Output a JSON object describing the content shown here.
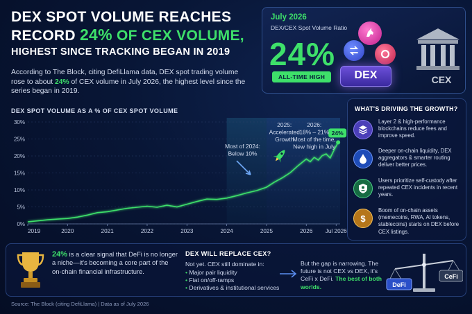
{
  "headline": {
    "line1": "DEX SPOT VOLUME REACHES",
    "line2_prefix": "RECORD",
    "line2_pct": "24%",
    "line2_suffix": "OF CEX VOLUME,",
    "line3": "HIGHEST SINCE TRACKING BEGAN IN 2019"
  },
  "intro": {
    "before": "According to The Block, citing DefiLlama data, DEX spot trading volume rose to about",
    "pct": "24%",
    "after": "of CEX volume in July 2026, the highest level since the series began in 2019."
  },
  "stat_card": {
    "date": "July 2026",
    "subtitle": "DEX/CEX Spot Volume Ratio",
    "value": "24%",
    "badge": "ALL-TIME HIGH",
    "dex_label": "DEX",
    "cex_label": "CEX",
    "icons": [
      "unicorn-coin-icon",
      "swap-coin-icon",
      "ring-coin-icon",
      "bank-building-icon"
    ]
  },
  "chart_data": {
    "type": "line",
    "title": "DEX SPOT VOLUME AS A % OF CEX SPOT VOLUME",
    "xlabel": "",
    "ylabel": "",
    "x_ticks": [
      "2019",
      "2020",
      "2021",
      "2022",
      "2023",
      "2024",
      "2025",
      "2026",
      "Jul 2026"
    ],
    "y_ticks": [
      "0%",
      "5%",
      "10%",
      "15%",
      "20%",
      "25%",
      "30%"
    ],
    "ylim": [
      0,
      30
    ],
    "xlim": [
      2019.0,
      2026.85
    ],
    "grid": true,
    "line_color": "#3ee06a",
    "series": [
      {
        "x": [
          2019.0,
          2019.25,
          2019.5,
          2019.75,
          2020.0,
          2020.25,
          2020.5,
          2020.75,
          2021.0,
          2021.25,
          2021.5,
          2021.75,
          2022.0,
          2022.25,
          2022.5,
          2022.75,
          2023.0,
          2023.25,
          2023.5,
          2023.75,
          2024.0,
          2024.25,
          2024.5,
          2024.75,
          2025.0,
          2025.2,
          2025.4,
          2025.6,
          2025.8,
          2026.0,
          2026.1,
          2026.2,
          2026.3,
          2026.4,
          2026.5,
          2026.6,
          2026.7,
          2026.8
        ],
        "y": [
          0.6,
          0.9,
          1.2,
          1.4,
          1.6,
          2.0,
          2.6,
          3.3,
          3.6,
          4.1,
          4.6,
          4.9,
          5.2,
          4.9,
          5.5,
          5.0,
          5.8,
          6.6,
          7.3,
          7.2,
          7.6,
          8.3,
          9.1,
          9.8,
          10.8,
          12.3,
          13.6,
          15.1,
          17.2,
          19.1,
          18.3,
          19.6,
          18.8,
          20.1,
          20.6,
          19.4,
          21.8,
          24.0
        ]
      }
    ],
    "annotations": {
      "a2024": [
        "Most of 2024:",
        "Below 10%"
      ],
      "a2025": [
        "2025:",
        "Accelerated",
        "Growth"
      ],
      "a2026": [
        "2026:",
        "18% – 21%",
        "Most of the time,",
        "New high in July"
      ],
      "endlabel": "24%"
    }
  },
  "drivers": {
    "title": "WHAT'S DRIVING THE GROWTH?",
    "items": [
      {
        "icon": "layers-icon",
        "text": "Layer 2 & high-performance blockchains reduce fees and improve speed.",
        "color": "#6a5be0"
      },
      {
        "icon": "droplet-icon",
        "text": "Deeper on-chain liquidity, DEX aggregators & smarter routing deliver better prices.",
        "color": "#2f63d8"
      },
      {
        "icon": "shield-user-icon",
        "text": "Users prioritize self-custody after repeated CEX incidents in recent years.",
        "color": "#1f8a56"
      },
      {
        "icon": "dollar-coin-icon",
        "text": "Boom of on-chain assets (memecoins, RWA, AI tokens, stablecoins) starts on DEX before CEX listings.",
        "color": "#c98a1c"
      }
    ]
  },
  "bottom": {
    "left_pct": "24%",
    "left_text": "is a clear signal that DeFi is no longer a niche—it's becoming a core part of the on-chain financial infrastructure.",
    "mid_title": "DEX WILL REPLACE CEX?",
    "mid_sub": "Not yet. CEX still dominate in:",
    "mid_items": [
      "Major pair liquidity",
      "Fiat on/off-ramps",
      "Derivatives & institutional services"
    ],
    "right_text": "But the gap is narrowing. The future is not CEX vs DEX, it's CeFi x DeFi.",
    "right_green": "The best of both worlds.",
    "scale_left": "DeFi",
    "scale_right": "CeFi"
  },
  "source": "Source: The Block (citing DefiLlama)  |  Data as of July 2026"
}
